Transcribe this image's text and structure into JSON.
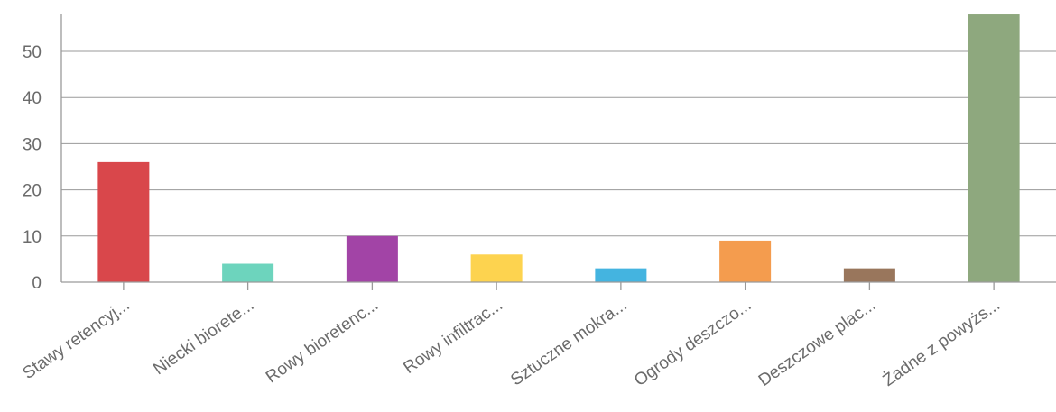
{
  "chart_data": {
    "type": "bar",
    "title": "",
    "xlabel": "",
    "ylabel": "",
    "ylim": [
      0,
      58
    ],
    "yticks": [
      0,
      10,
      20,
      30,
      40,
      50
    ],
    "yticks_labels": [
      "0",
      "10",
      "20",
      "30",
      "40",
      "50"
    ],
    "grid": true,
    "legend": "none",
    "categories": [
      "Stawy retencyj...",
      "Niecki biorete...",
      "Rowy bioretenc...",
      "Rowy infiltrac...",
      "Sztuczne mokra...",
      "Ogrody deszczo...",
      "Deszczowe plac...",
      "Żadne z powyżs..."
    ],
    "values": [
      26,
      4,
      10,
      6,
      3,
      9,
      3,
      58
    ],
    "colors": [
      "#d9474b",
      "#6dd4bd",
      "#a244a6",
      "#fdd34f",
      "#44b4e0",
      "#f49c4e",
      "#99765c",
      "#8ea87e"
    ]
  }
}
